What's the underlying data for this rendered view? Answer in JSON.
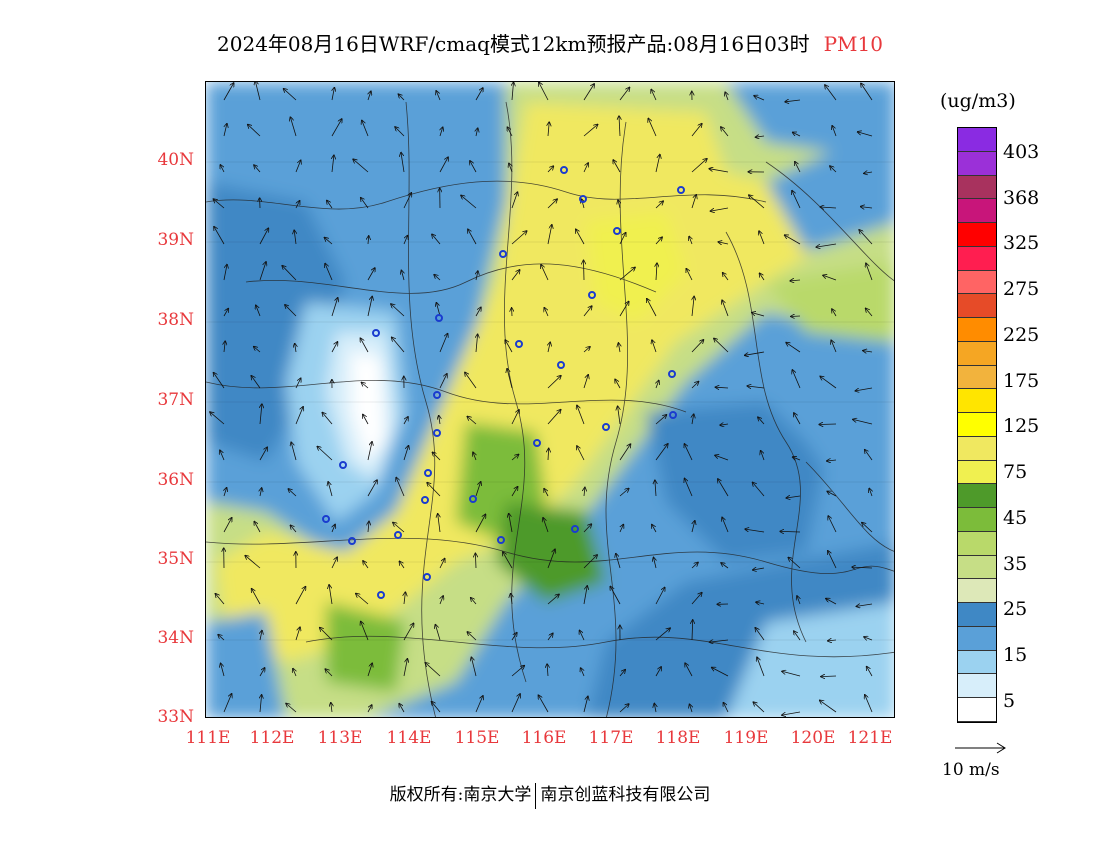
{
  "title": {
    "text": "2024年08月16日WRF/cmaq模式12km预报产品:08月16日03时",
    "pollutant": "PM10"
  },
  "map": {
    "lat_labels": [
      "40N",
      "39N",
      "38N",
      "37N",
      "36N",
      "35N",
      "34N",
      "33N"
    ],
    "lon_labels": [
      "111E",
      "112E",
      "113E",
      "114E",
      "115E",
      "116E",
      "117E",
      "118E",
      "119E",
      "120E",
      "121E"
    ]
  },
  "legend": {
    "unit": "(ug/m3)",
    "tick_labels": [
      "403",
      "368",
      "325",
      "275",
      "225",
      "175",
      "125",
      "75",
      "45",
      "35",
      "25",
      "15",
      "5"
    ],
    "colors": [
      "#8a2be2",
      "#9b30d8",
      "#a8325e",
      "#c8157a",
      "#ff0000",
      "#ff1e50",
      "#ff6464",
      "#e64b28",
      "#ff8c00",
      "#f5a623",
      "#f2b33d",
      "#ffe500",
      "#ffff00",
      "#f0e860",
      "#f0f050",
      "#4e9a2a",
      "#7cbc3a",
      "#b9d96a",
      "#c6de86",
      "#dde8b8",
      "#3f88c5",
      "#5aa0d8",
      "#9bd2f0",
      "#d7eefa",
      "#ffffff"
    ]
  },
  "wind_reference": {
    "label": "10 m/s"
  },
  "footer": {
    "copyright": "版权所有:南京大学",
    "company": "南京创蓝科技有限公司"
  }
}
